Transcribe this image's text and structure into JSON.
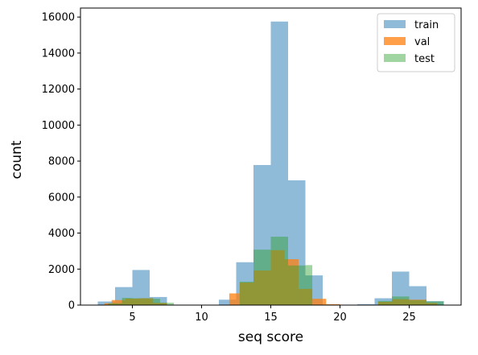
{
  "chart_data": {
    "type": "histogram",
    "title": "",
    "xlabel": "seq score",
    "ylabel": "count",
    "xlim": [
      1.25,
      28.75
    ],
    "ylim": [
      0,
      16500
    ],
    "xticks": [
      5,
      10,
      15,
      20,
      25
    ],
    "yticks": [
      0,
      2000,
      4000,
      6000,
      8000,
      10000,
      12000,
      14000,
      16000
    ],
    "grid": false,
    "legend": {
      "position": "upper-right"
    },
    "bin_width": 1.25,
    "series": [
      {
        "name": "train",
        "color": "#1f77b4",
        "opacity": 0.5,
        "bins": [
          {
            "x0": 2.5,
            "x1": 3.75,
            "value": 200
          },
          {
            "x0": 3.75,
            "x1": 5.0,
            "value": 1000
          },
          {
            "x0": 5.0,
            "x1": 6.25,
            "value": 1950
          },
          {
            "x0": 6.25,
            "x1": 7.5,
            "value": 450
          },
          {
            "x0": 7.5,
            "x1": 8.75,
            "value": 20
          },
          {
            "x0": 11.25,
            "x1": 12.5,
            "value": 300
          },
          {
            "x0": 12.5,
            "x1": 13.75,
            "value": 2380
          },
          {
            "x0": 13.75,
            "x1": 15.0,
            "value": 7780
          },
          {
            "x0": 15.0,
            "x1": 16.25,
            "value": 15750
          },
          {
            "x0": 16.25,
            "x1": 17.5,
            "value": 6930
          },
          {
            "x0": 17.5,
            "x1": 18.75,
            "value": 1650
          },
          {
            "x0": 21.25,
            "x1": 22.5,
            "value": 50
          },
          {
            "x0": 22.5,
            "x1": 23.75,
            "value": 380
          },
          {
            "x0": 23.75,
            "x1": 25.0,
            "value": 1860
          },
          {
            "x0": 25.0,
            "x1": 26.25,
            "value": 1050
          },
          {
            "x0": 26.25,
            "x1": 27.5,
            "value": 220
          }
        ]
      },
      {
        "name": "val",
        "color": "#ff7f0e",
        "opacity": 0.75,
        "bins": [
          {
            "x0": 3.0,
            "x1": 3.5,
            "value": 100
          },
          {
            "x0": 3.5,
            "x1": 4.5,
            "value": 280
          },
          {
            "x0": 4.5,
            "x1": 5.5,
            "value": 360
          },
          {
            "x0": 5.5,
            "x1": 6.5,
            "value": 380
          },
          {
            "x0": 6.5,
            "x1": 7.5,
            "value": 120
          },
          {
            "x0": 12.0,
            "x1": 12.75,
            "value": 650
          },
          {
            "x0": 12.75,
            "x1": 13.75,
            "value": 1250
          },
          {
            "x0": 13.75,
            "x1": 15.0,
            "value": 1920
          },
          {
            "x0": 15.0,
            "x1": 16.0,
            "value": 3050
          },
          {
            "x0": 16.0,
            "x1": 17.0,
            "value": 2550
          },
          {
            "x0": 17.0,
            "x1": 18.0,
            "value": 900
          },
          {
            "x0": 18.0,
            "x1": 19.0,
            "value": 350
          },
          {
            "x0": 19.0,
            "x1": 20.0,
            "value": 50
          },
          {
            "x0": 22.75,
            "x1": 23.75,
            "value": 180
          },
          {
            "x0": 23.75,
            "x1": 25.0,
            "value": 330
          },
          {
            "x0": 25.0,
            "x1": 26.25,
            "value": 300
          },
          {
            "x0": 26.25,
            "x1": 27.0,
            "value": 120
          }
        ]
      },
      {
        "name": "test",
        "color": "#2ca02c",
        "opacity": 0.45,
        "bins": [
          {
            "x0": 3.25,
            "x1": 4.25,
            "value": 100
          },
          {
            "x0": 4.25,
            "x1": 5.0,
            "value": 400
          },
          {
            "x0": 5.0,
            "x1": 6.5,
            "value": 380
          },
          {
            "x0": 6.5,
            "x1": 7.0,
            "value": 350
          },
          {
            "x0": 7.0,
            "x1": 8.0,
            "value": 130
          },
          {
            "x0": 12.75,
            "x1": 13.75,
            "value": 1300
          },
          {
            "x0": 13.75,
            "x1": 15.0,
            "value": 3080
          },
          {
            "x0": 15.0,
            "x1": 16.25,
            "value": 3800
          },
          {
            "x0": 16.25,
            "x1": 17.5,
            "value": 2200
          },
          {
            "x0": 17.5,
            "x1": 18.0,
            "value": 2220
          },
          {
            "x0": 22.75,
            "x1": 23.75,
            "value": 230
          },
          {
            "x0": 23.75,
            "x1": 25.0,
            "value": 480
          },
          {
            "x0": 25.0,
            "x1": 26.25,
            "value": 280
          },
          {
            "x0": 26.25,
            "x1": 27.5,
            "value": 200
          }
        ]
      }
    ]
  }
}
